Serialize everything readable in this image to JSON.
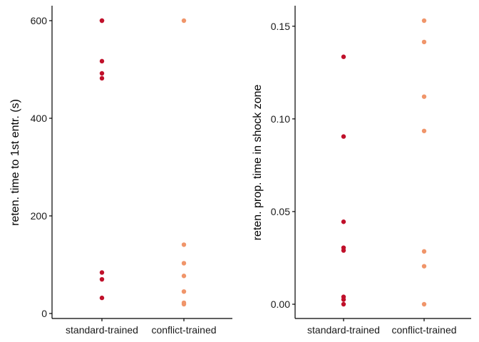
{
  "chart_data": [
    {
      "type": "scatter",
      "categories": [
        "standard-trained",
        "conflict-trained"
      ],
      "ylabel": "reten. time to 1st entr. (s)",
      "xlabel": "",
      "ylim": [
        0,
        600
      ],
      "yticks": [
        0,
        200,
        400,
        600
      ],
      "ytick_labels": [
        "0",
        "200",
        "400",
        "600"
      ],
      "grid": false,
      "legend": "none",
      "series": [
        {
          "category": "standard-trained",
          "color": "#c0102a",
          "values": [
            600,
            600,
            517,
            492,
            482,
            84,
            70,
            32
          ]
        },
        {
          "category": "conflict-trained",
          "color": "#f0956a",
          "values": [
            600,
            141,
            103,
            77,
            45,
            22,
            19
          ]
        }
      ]
    },
    {
      "type": "scatter",
      "categories": [
        "standard-trained",
        "conflict-trained"
      ],
      "ylabel": "reten. prop. time in shock zone",
      "xlabel": "",
      "ylim": [
        0,
        0.153
      ],
      "yticks": [
        0,
        0.05,
        0.1,
        0.15
      ],
      "ytick_labels": [
        "0.00",
        "0.05",
        "0.10",
        "0.15"
      ],
      "grid": false,
      "legend": "none",
      "series": [
        {
          "category": "standard-trained",
          "color": "#c0102a",
          "values": [
            0.1335,
            0.0905,
            0.0445,
            0.0305,
            0.029,
            0.004,
            0.0025,
            0.0
          ]
        },
        {
          "category": "conflict-trained",
          "color": "#f0956a",
          "values": [
            0.153,
            0.1415,
            0.112,
            0.0935,
            0.0285,
            0.0205,
            0.0
          ]
        }
      ]
    }
  ]
}
